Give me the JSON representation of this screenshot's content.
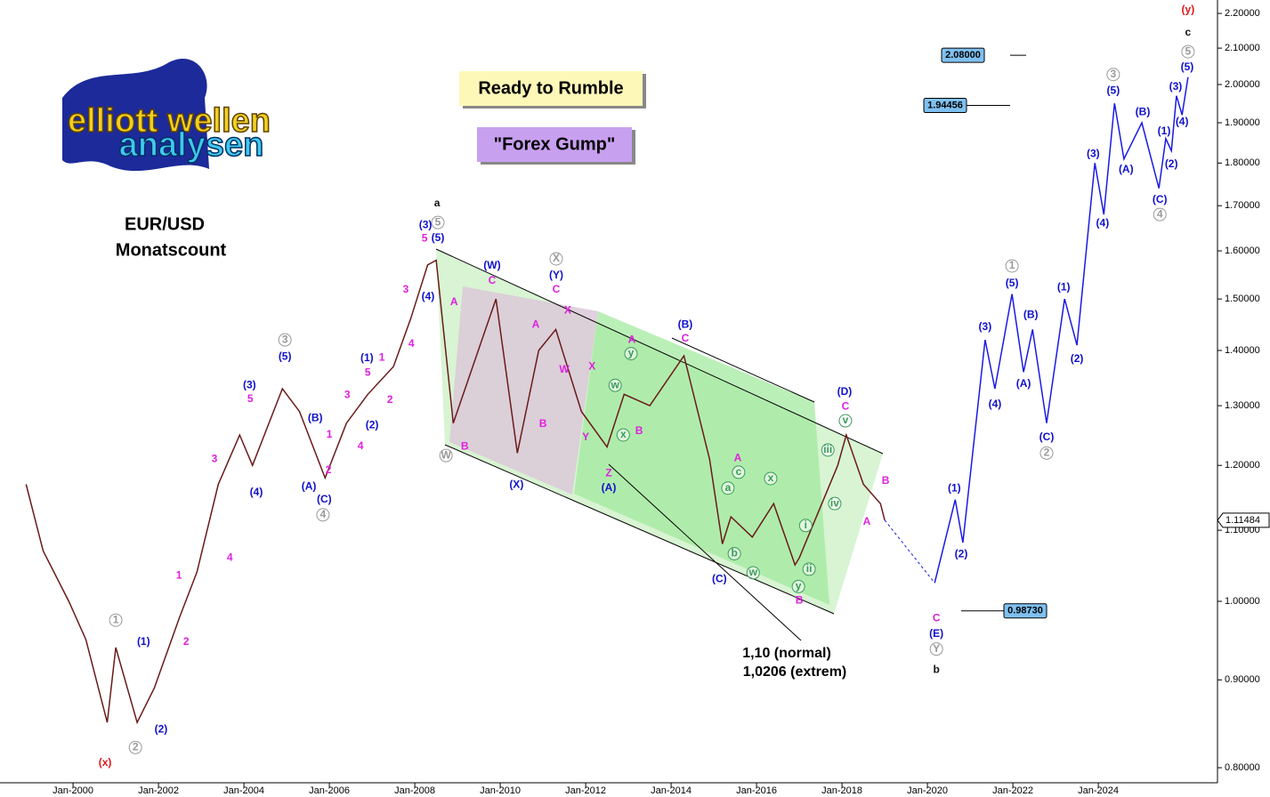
{
  "chart_data": {
    "type": "wave-chart",
    "title": "EUR/USD",
    "subtitle": "Monatscount",
    "logo": {
      "line1": "elliott wellen",
      "line2": "analysen"
    },
    "boxes": [
      "Ready to Rumble",
      "\"Forex Gump\""
    ],
    "notes": [
      "1,10 (normal)",
      "1,0206 (extrem)"
    ],
    "log_scale": true,
    "xlim": [
      1998.29,
      2026.79
    ],
    "ylim": [
      0.784,
      2.24
    ],
    "xticks": [
      {
        "value": 2000,
        "label": "Jan-2000"
      },
      {
        "value": 2002,
        "label": "Jan-2002"
      },
      {
        "value": 2004,
        "label": "Jan-2004"
      },
      {
        "value": 2006,
        "label": "Jan-2006"
      },
      {
        "value": 2008,
        "label": "Jan-2008"
      },
      {
        "value": 2010,
        "label": "Jan-2010"
      },
      {
        "value": 2012,
        "label": "Jan-2012"
      },
      {
        "value": 2014,
        "label": "Jan-2014"
      },
      {
        "value": 2016,
        "label": "Jan-2016"
      },
      {
        "value": 2018,
        "label": "Jan-2018"
      },
      {
        "value": 2020,
        "label": "Jan-2020"
      },
      {
        "value": 2022,
        "label": "Jan-2022"
      },
      {
        "value": 2024,
        "label": "Jan-2024"
      }
    ],
    "yticks": [
      {
        "value": 0.8,
        "label": "0.80000"
      },
      {
        "value": 0.9,
        "label": "0.90000"
      },
      {
        "value": 1.0,
        "label": "1.00000"
      },
      {
        "value": 1.1,
        "label": "1.10000"
      },
      {
        "value": 1.2,
        "label": "1.20000"
      },
      {
        "value": 1.3,
        "label": "1.30000"
      },
      {
        "value": 1.4,
        "label": "1.40000"
      },
      {
        "value": 1.5,
        "label": "1.50000"
      },
      {
        "value": 1.6,
        "label": "1.60000"
      },
      {
        "value": 1.7,
        "label": "1.70000"
      },
      {
        "value": 1.8,
        "label": "1.80000"
      },
      {
        "value": 1.9,
        "label": "1.90000"
      },
      {
        "value": 2.0,
        "label": "2.00000"
      },
      {
        "value": 2.1,
        "label": "2.10000"
      },
      {
        "value": 2.2,
        "label": "2.20000"
      }
    ],
    "current_price": {
      "value": 1.11484,
      "label": "1.11484"
    },
    "price_boxes": [
      {
        "value": 2.08,
        "label": "2.08000"
      },
      {
        "value": 1.94456,
        "label": "1.94456"
      },
      {
        "value": 0.9873,
        "label": "0.98730"
      }
    ],
    "price": {
      "color": "#6b1a1a",
      "x": [
        1998.9,
        1999.3,
        1999.9,
        2000.3,
        2000.8,
        2001.0,
        2001.5,
        2001.9,
        2002.5,
        2002.9,
        2003.4,
        2003.9,
        2004.2,
        2004.9,
        2005.3,
        2005.9,
        2006.4,
        2006.9,
        2007.5,
        2007.9,
        2008.3,
        2008.5,
        2008.9,
        2009.9,
        2010.4,
        2010.9,
        2011.3,
        2011.9,
        2012.5,
        2012.9,
        2013.5,
        2014.3,
        2014.9,
        2015.2,
        2015.4,
        2015.9,
        2016.4,
        2016.9,
        2017.0,
        2017.9,
        2018.1,
        2018.5,
        2018.9,
        2019.0
      ],
      "values": [
        1.17,
        1.07,
        1.0,
        0.95,
        0.85,
        0.94,
        0.85,
        0.89,
        0.98,
        1.04,
        1.17,
        1.25,
        1.2,
        1.33,
        1.29,
        1.18,
        1.27,
        1.32,
        1.37,
        1.46,
        1.57,
        1.58,
        1.27,
        1.5,
        1.22,
        1.4,
        1.44,
        1.29,
        1.23,
        1.32,
        1.3,
        1.39,
        1.21,
        1.08,
        1.12,
        1.09,
        1.14,
        1.05,
        1.06,
        1.2,
        1.25,
        1.17,
        1.14,
        1.115
      ]
    },
    "projection": {
      "color": "#1a1ae6",
      "x": [
        2020.17,
        2020.65,
        2020.83,
        2021.35,
        2021.58,
        2021.98,
        2022.25,
        2022.46,
        2022.79,
        2023.21,
        2023.5,
        2023.92,
        2024.13,
        2024.38,
        2024.6,
        2025.02,
        2025.42,
        2025.58,
        2025.71,
        2025.83,
        2025.96,
        2026.1
      ],
      "values": [
        1.025,
        1.146,
        1.082,
        1.42,
        1.33,
        1.51,
        1.36,
        1.44,
        1.27,
        1.5,
        1.41,
        1.8,
        1.68,
        1.95,
        1.81,
        1.9,
        1.74,
        1.86,
        1.83,
        1.97,
        1.92,
        2.02
      ]
    },
    "wave_labels": [
      {
        "color": "#e01818",
        "circled": false,
        "labels": [
          {
            "x": 2000.75,
            "y": 0.805,
            "text": "(x)"
          },
          {
            "x": 2026.1,
            "y": 2.21,
            "text": "(y)"
          }
        ]
      },
      {
        "color": "#111111",
        "circled": false,
        "labels": [
          {
            "x": 2008.52,
            "y": 1.705,
            "text": "a"
          },
          {
            "x": 2020.21,
            "y": 0.912,
            "text": "b"
          },
          {
            "x": 2026.1,
            "y": 2.144,
            "text": "c"
          }
        ]
      },
      {
        "color": "#999999",
        "circled": true,
        "labels": [
          {
            "x": 2001.0,
            "y": 0.975,
            "text": "1"
          },
          {
            "x": 2001.46,
            "y": 0.822,
            "text": "2"
          },
          {
            "x": 2004.96,
            "y": 1.42,
            "text": "3"
          },
          {
            "x": 2005.85,
            "y": 1.123,
            "text": "4"
          },
          {
            "x": 2008.54,
            "y": 1.662,
            "text": "5"
          },
          {
            "x": 2008.73,
            "y": 1.216,
            "text": "W"
          },
          {
            "x": 2011.31,
            "y": 1.583,
            "text": "X"
          },
          {
            "x": 2020.21,
            "y": 0.938,
            "text": "Y"
          },
          {
            "x": 2021.98,
            "y": 1.568,
            "text": "1"
          },
          {
            "x": 2022.79,
            "y": 1.22,
            "text": "2"
          },
          {
            "x": 2024.35,
            "y": 2.027,
            "text": "3"
          },
          {
            "x": 2025.44,
            "y": 1.68,
            "text": "4"
          },
          {
            "x": 2026.1,
            "y": 2.09,
            "text": "5"
          }
        ]
      },
      {
        "color": "#3a9a5a",
        "circled": true,
        "labels": [
          {
            "x": 2013.06,
            "y": 1.394,
            "text": "y"
          },
          {
            "x": 2012.69,
            "y": 1.336,
            "text": "w"
          },
          {
            "x": 2012.88,
            "y": 1.25,
            "text": "x"
          },
          {
            "x": 2015.58,
            "y": 1.189,
            "text": "c"
          },
          {
            "x": 2015.33,
            "y": 1.164,
            "text": "a"
          },
          {
            "x": 2016.33,
            "y": 1.179,
            "text": "x"
          },
          {
            "x": 2015.48,
            "y": 1.066,
            "text": "b"
          },
          {
            "x": 2015.92,
            "y": 1.039,
            "text": "w"
          },
          {
            "x": 2017.15,
            "y": 1.107,
            "text": "i"
          },
          {
            "x": 2017.23,
            "y": 1.044,
            "text": "ii"
          },
          {
            "x": 2016.98,
            "y": 1.02,
            "text": "y"
          },
          {
            "x": 2017.67,
            "y": 1.225,
            "text": "iii"
          },
          {
            "x": 2017.83,
            "y": 1.14,
            "text": "iv"
          },
          {
            "x": 2018.08,
            "y": 1.274,
            "text": "v"
          }
        ]
      },
      {
        "color": "#1010cc",
        "circled": false,
        "labels": [
          {
            "x": 2001.65,
            "y": 0.947,
            "text": "(1)"
          },
          {
            "x": 2002.06,
            "y": 0.842,
            "text": "(2)"
          },
          {
            "x": 2004.13,
            "y": 1.336,
            "text": "(3)"
          },
          {
            "x": 2004.29,
            "y": 1.157,
            "text": "(4)"
          },
          {
            "x": 2004.96,
            "y": 1.388,
            "text": "(5)"
          },
          {
            "x": 2005.67,
            "y": 1.278,
            "text": "(B)"
          },
          {
            "x": 2005.52,
            "y": 1.166,
            "text": "(A)"
          },
          {
            "x": 2005.88,
            "y": 1.146,
            "text": "(C)"
          },
          {
            "x": 2007.0,
            "y": 1.266,
            "text": "(2)"
          },
          {
            "x": 2006.88,
            "y": 1.385,
            "text": "(1)"
          },
          {
            "x": 2008.31,
            "y": 1.504,
            "text": "(4)"
          },
          {
            "x": 2008.25,
            "y": 1.656,
            "text": "(3)"
          },
          {
            "x": 2008.54,
            "y": 1.627,
            "text": "(5)"
          },
          {
            "x": 2009.81,
            "y": 1.568,
            "text": "(W)"
          },
          {
            "x": 2010.38,
            "y": 1.169,
            "text": "(X)"
          },
          {
            "x": 2011.31,
            "y": 1.548,
            "text": "(Y)"
          },
          {
            "x": 2012.54,
            "y": 1.164,
            "text": "(A)"
          },
          {
            "x": 2014.33,
            "y": 1.449,
            "text": "(B)"
          },
          {
            "x": 2015.13,
            "y": 1.03,
            "text": "(C)"
          },
          {
            "x": 2018.06,
            "y": 1.324,
            "text": "(D)"
          },
          {
            "x": 2020.21,
            "y": 0.957,
            "text": "(E)"
          },
          {
            "x": 2020.63,
            "y": 1.163,
            "text": "(1)"
          },
          {
            "x": 2020.79,
            "y": 1.065,
            "text": "(2)"
          },
          {
            "x": 2021.35,
            "y": 1.444,
            "text": "(3)"
          },
          {
            "x": 2021.58,
            "y": 1.302,
            "text": "(4)"
          },
          {
            "x": 2021.98,
            "y": 1.531,
            "text": "(5)"
          },
          {
            "x": 2022.42,
            "y": 1.468,
            "text": "(B)"
          },
          {
            "x": 2022.25,
            "y": 1.338,
            "text": "(A)"
          },
          {
            "x": 2022.79,
            "y": 1.246,
            "text": "(C)"
          },
          {
            "x": 2023.19,
            "y": 1.523,
            "text": "(1)"
          },
          {
            "x": 2023.5,
            "y": 1.384,
            "text": "(2)"
          },
          {
            "x": 2023.88,
            "y": 1.822,
            "text": "(3)"
          },
          {
            "x": 2024.1,
            "y": 1.66,
            "text": "(4)"
          },
          {
            "x": 2024.35,
            "y": 1.982,
            "text": "(5)"
          },
          {
            "x": 2025.04,
            "y": 1.927,
            "text": "(B)"
          },
          {
            "x": 2024.65,
            "y": 1.784,
            "text": "(A)"
          },
          {
            "x": 2025.44,
            "y": 1.713,
            "text": "(C)"
          },
          {
            "x": 2025.54,
            "y": 1.878,
            "text": "(1)"
          },
          {
            "x": 2025.71,
            "y": 1.797,
            "text": "(2)"
          },
          {
            "x": 2025.81,
            "y": 1.993,
            "text": "(3)"
          },
          {
            "x": 2025.96,
            "y": 1.902,
            "text": "(4)"
          },
          {
            "x": 2026.08,
            "y": 2.046,
            "text": "(5)"
          }
        ]
      },
      {
        "color": "#e020e0",
        "circled": false,
        "labels": [
          {
            "x": 2002.48,
            "y": 1.035,
            "text": "1"
          },
          {
            "x": 2002.65,
            "y": 0.947,
            "text": "2"
          },
          {
            "x": 2003.31,
            "y": 1.21,
            "text": "3"
          },
          {
            "x": 2003.67,
            "y": 1.06,
            "text": "4"
          },
          {
            "x": 2004.15,
            "y": 1.311,
            "text": "5"
          },
          {
            "x": 2006.0,
            "y": 1.25,
            "text": "1"
          },
          {
            "x": 2005.98,
            "y": 1.192,
            "text": "2"
          },
          {
            "x": 2006.42,
            "y": 1.318,
            "text": "3"
          },
          {
            "x": 2006.73,
            "y": 1.231,
            "text": "4"
          },
          {
            "x": 2006.9,
            "y": 1.358,
            "text": "5"
          },
          {
            "x": 2007.23,
            "y": 1.386,
            "text": "1"
          },
          {
            "x": 2007.42,
            "y": 1.31,
            "text": "2"
          },
          {
            "x": 2007.79,
            "y": 1.519,
            "text": "3"
          },
          {
            "x": 2007.92,
            "y": 1.412,
            "text": "4"
          },
          {
            "x": 2008.23,
            "y": 1.626,
            "text": "5"
          },
          {
            "x": 2008.92,
            "y": 1.493,
            "text": "A"
          },
          {
            "x": 2009.17,
            "y": 1.23,
            "text": "B"
          },
          {
            "x": 2009.81,
            "y": 1.537,
            "text": "C"
          },
          {
            "x": 2010.83,
            "y": 1.449,
            "text": "A"
          },
          {
            "x": 2011.0,
            "y": 1.268,
            "text": "B"
          },
          {
            "x": 2011.31,
            "y": 1.519,
            "text": "C"
          },
          {
            "x": 2011.58,
            "y": 1.477,
            "text": "X"
          },
          {
            "x": 2011.5,
            "y": 1.364,
            "text": "W"
          },
          {
            "x": 2012.15,
            "y": 1.37,
            "text": "X"
          },
          {
            "x": 2012.0,
            "y": 1.246,
            "text": "Y"
          },
          {
            "x": 2012.54,
            "y": 1.187,
            "text": "Z"
          },
          {
            "x": 2013.08,
            "y": 1.42,
            "text": "A"
          },
          {
            "x": 2013.25,
            "y": 1.256,
            "text": "B"
          },
          {
            "x": 2014.33,
            "y": 1.422,
            "text": "C"
          },
          {
            "x": 2015.56,
            "y": 1.211,
            "text": "A"
          },
          {
            "x": 2017.0,
            "y": 1.001,
            "text": "B"
          },
          {
            "x": 2018.08,
            "y": 1.298,
            "text": "C"
          },
          {
            "x": 2019.02,
            "y": 1.175,
            "text": "B"
          },
          {
            "x": 2018.58,
            "y": 1.112,
            "text": "A"
          },
          {
            "x": 2020.21,
            "y": 0.977,
            "text": "C"
          }
        ]
      }
    ]
  }
}
